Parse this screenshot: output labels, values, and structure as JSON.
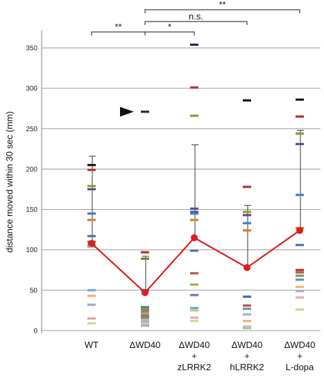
{
  "chart_data": {
    "type": "scatter",
    "ylabel": "distance moved within 30 sec (mm)",
    "ylim": [
      0,
      360
    ],
    "yticks": [
      0,
      50,
      100,
      150,
      200,
      250,
      300,
      350
    ],
    "grid": true,
    "categories": [
      {
        "lines": [
          "WT"
        ]
      },
      {
        "lines": [
          "ΔWD40"
        ]
      },
      {
        "lines": [
          "ΔWD40",
          "+",
          "zLRRK2"
        ]
      },
      {
        "lines": [
          "ΔWD40",
          "+",
          "hLRRK2"
        ]
      },
      {
        "lines": [
          "ΔWD40",
          "+",
          "L-dopa"
        ]
      }
    ],
    "means": [
      108,
      47,
      115,
      78,
      124
    ],
    "error_upper": [
      216,
      92,
      230,
      155,
      248
    ],
    "points": [
      [
        {
          "y": 205,
          "c": "#1a1a1a"
        },
        {
          "y": 199,
          "c": "#cc2a2a"
        },
        {
          "y": 179,
          "c": "#8a9a30"
        },
        {
          "y": 175,
          "c": "#6a4a90"
        },
        {
          "y": 145,
          "c": "#3b82c4"
        },
        {
          "y": 137,
          "c": "#e07a2a"
        },
        {
          "y": 117,
          "c": "#4a70b0"
        },
        {
          "y": 110,
          "c": "#b05050"
        },
        {
          "y": 106,
          "c": "#8a8a8a"
        },
        {
          "y": 104,
          "c": "#a0a0a0"
        },
        {
          "y": 50,
          "c": "#5ab0e0"
        },
        {
          "y": 43,
          "c": "#f0b070"
        },
        {
          "y": 32,
          "c": "#a0a8c8"
        },
        {
          "y": 15,
          "c": "#e0a0a0"
        },
        {
          "y": 9,
          "c": "#c8d8a0"
        }
      ],
      [
        {
          "y": 271,
          "c": "#1a2a50"
        },
        {
          "y": 97,
          "c": "#b03030"
        },
        {
          "y": 89,
          "c": "#6a8a30"
        },
        {
          "y": 50,
          "c": "#3a6ab0"
        },
        {
          "y": 29,
          "c": "#2a8090"
        },
        {
          "y": 27,
          "c": "#7a9a40"
        },
        {
          "y": 25,
          "c": "#c07030"
        },
        {
          "y": 23,
          "c": "#5a90c0"
        },
        {
          "y": 21,
          "c": "#e0a040"
        },
        {
          "y": 19,
          "c": "#8a7ab0"
        },
        {
          "y": 17,
          "c": "#c06060"
        },
        {
          "y": 15,
          "c": "#60a0a0"
        },
        {
          "y": 13,
          "c": "#d0c080"
        },
        {
          "y": 11,
          "c": "#a0b0d0"
        },
        {
          "y": 8,
          "c": "#e0c0a0"
        },
        {
          "y": 6,
          "c": "#b0b0b0"
        }
      ],
      [
        {
          "y": 354,
          "c": "#1a2a50"
        },
        {
          "y": 301,
          "c": "#b03040"
        },
        {
          "y": 266,
          "c": "#8a9a30"
        },
        {
          "y": 151,
          "c": "#6a4a90"
        },
        {
          "y": 147,
          "c": "#4a5aa0"
        },
        {
          "y": 145,
          "c": "#3b82c4"
        },
        {
          "y": 137,
          "c": "#e07a2a"
        },
        {
          "y": 99,
          "c": "#4a70b0"
        },
        {
          "y": 71,
          "c": "#c05060"
        },
        {
          "y": 57,
          "c": "#9ab050"
        },
        {
          "y": 44,
          "c": "#8a6ab0"
        },
        {
          "y": 28,
          "c": "#5ab0e0"
        },
        {
          "y": 25,
          "c": "#f0b070"
        },
        {
          "y": 16,
          "c": "#e0b0b0"
        },
        {
          "y": 12,
          "c": "#c8d8a0"
        }
      ],
      [
        {
          "y": 285,
          "c": "#1a1a1a"
        },
        {
          "y": 178,
          "c": "#b03030"
        },
        {
          "y": 147,
          "c": "#8a9a30"
        },
        {
          "y": 143,
          "c": "#6a4a90"
        },
        {
          "y": 133,
          "c": "#3b82c4"
        },
        {
          "y": 124,
          "c": "#e07a2a"
        },
        {
          "y": 42,
          "c": "#3a6ab0"
        },
        {
          "y": 31,
          "c": "#b05050"
        },
        {
          "y": 27,
          "c": "#6a9a9a"
        },
        {
          "y": 20,
          "c": "#9ab0d0"
        },
        {
          "y": 12,
          "c": "#f0b070"
        },
        {
          "y": 5,
          "c": "#c0c0c0"
        },
        {
          "y": 3,
          "c": "#a8c0a0"
        }
      ],
      [
        {
          "y": 286,
          "c": "#1a1a1a"
        },
        {
          "y": 265,
          "c": "#b03030"
        },
        {
          "y": 244,
          "c": "#8a9a30"
        },
        {
          "y": 231,
          "c": "#6a4a90"
        },
        {
          "y": 168,
          "c": "#3b82c4"
        },
        {
          "y": 127,
          "c": "#e07a2a"
        },
        {
          "y": 106,
          "c": "#4a70b0"
        },
        {
          "y": 75,
          "c": "#c03030"
        },
        {
          "y": 72,
          "c": "#b06060"
        },
        {
          "y": 68,
          "c": "#7a9a40"
        },
        {
          "y": 63,
          "c": "#5a90c0"
        },
        {
          "y": 54,
          "c": "#f0b070"
        },
        {
          "y": 49,
          "c": "#a0a8c8"
        },
        {
          "y": 41,
          "c": "#e0b0b0"
        },
        {
          "y": 26,
          "c": "#c8d0a0"
        }
      ]
    ],
    "significance": [
      {
        "from": 0,
        "to": 1,
        "label": "**",
        "level": 0
      },
      {
        "from": 1,
        "to": 2,
        "label": "*",
        "level": 0
      },
      {
        "from": 1,
        "to": 3,
        "label": "n.s.",
        "level": 1
      },
      {
        "from": 1,
        "to": 4,
        "label": "**",
        "level": 2
      }
    ],
    "annotation": {
      "type": "arrowhead",
      "category": 1,
      "y": 271
    }
  },
  "colors": {
    "mean_line": "#e01c1c",
    "mean_marker": "#e01c1c",
    "grid": "#9a9a9a",
    "error_bar": "#333333"
  }
}
